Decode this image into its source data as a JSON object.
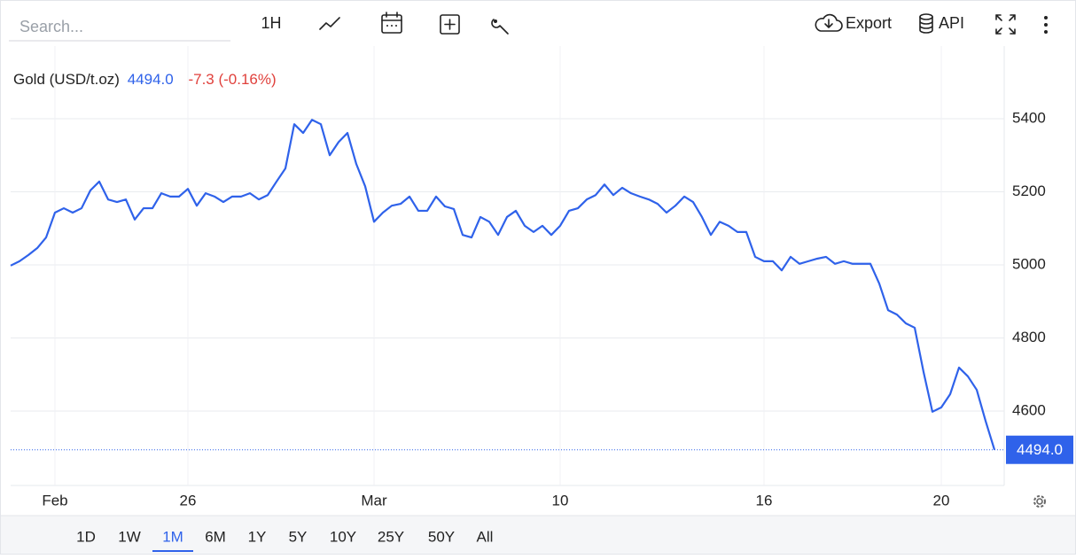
{
  "toolbar": {
    "search_placeholder": "Search...",
    "interval": "1H",
    "export": "Export",
    "api": "API"
  },
  "ranges": {
    "items": [
      "1D",
      "1W",
      "1M",
      "6M",
      "1Y",
      "5Y",
      "10Y",
      "25Y",
      "50Y",
      "All"
    ],
    "selected": "1M"
  },
  "chart_data": {
    "type": "line",
    "title": "Gold (USD/t.oz)",
    "last_price": "4494.0",
    "change": "-7.3 (-0.16%)",
    "price_tag": "4494.0",
    "categories": [
      null,
      null,
      null,
      null,
      null,
      "Feb",
      null,
      null,
      null,
      null,
      null,
      null,
      null,
      null,
      null,
      null,
      null,
      null,
      null,
      null,
      "26",
      null,
      null,
      null,
      null,
      null,
      null,
      null,
      null,
      null,
      null,
      null,
      null,
      null,
      null,
      null,
      null,
      null,
      null,
      null,
      null,
      "Mar",
      null,
      null,
      null,
      null,
      null,
      null,
      null,
      null,
      null,
      null,
      null,
      null,
      null,
      null,
      null,
      null,
      null,
      null,
      null,
      null,
      "10",
      null,
      null,
      null,
      null,
      null,
      null,
      null,
      null,
      null,
      null,
      null,
      null,
      null,
      null,
      null,
      null,
      null,
      null,
      null,
      null,
      null,
      null,
      "16",
      null,
      null,
      null,
      null,
      null,
      null,
      null,
      null,
      null,
      null,
      null,
      null,
      null,
      null,
      null,
      null,
      null,
      null,
      null,
      "20",
      null,
      null,
      null,
      null,
      null,
      null
    ],
    "series": [
      {
        "name": "Gold (USD/t.oz)",
        "color": "#2f62ea",
        "values": [
          4998,
          5010,
          5027,
          5046,
          5075,
          5143,
          5155,
          5143,
          5155,
          5204,
          5228,
          5179,
          5172,
          5179,
          5124,
          5155,
          5155,
          5196,
          5187,
          5187,
          5208,
          5162,
          5196,
          5187,
          5172,
          5187,
          5187,
          5196,
          5179,
          5191,
          5228,
          5264,
          5385,
          5361,
          5397,
          5385,
          5300,
          5336,
          5361,
          5276,
          5215,
          5118,
          5143,
          5162,
          5167,
          5187,
          5148,
          5148,
          5187,
          5160,
          5153,
          5082,
          5075,
          5131,
          5118,
          5082,
          5131,
          5148,
          5107,
          5090,
          5107,
          5082,
          5107,
          5148,
          5155,
          5179,
          5191,
          5220,
          5191,
          5211,
          5196,
          5187,
          5179,
          5167,
          5143,
          5162,
          5187,
          5172,
          5131,
          5082,
          5118,
          5107,
          5090,
          5090,
          5022,
          5010,
          5010,
          4985,
          5022,
          5003,
          5010,
          5017,
          5022,
          5003,
          5010,
          5003,
          5003,
          5003,
          4949,
          4876,
          4864,
          4840,
          4828,
          4707,
          4598,
          4610,
          4646,
          4719,
          4695,
          4658,
          4573,
          4494
        ]
      }
    ],
    "ylim": [
      4400,
      5600
    ],
    "yticks": [
      4600,
      4800,
      5000,
      5200,
      5400
    ],
    "grid": true,
    "price_line_color": "#2f62ea"
  }
}
